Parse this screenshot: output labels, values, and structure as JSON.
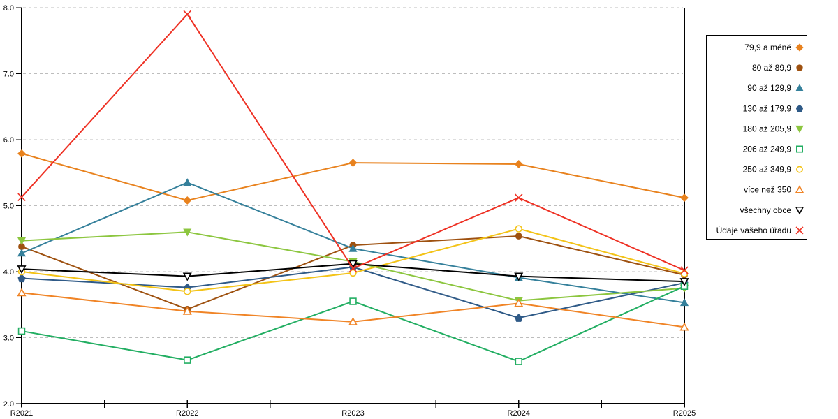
{
  "chart_data": {
    "type": "line",
    "title": "",
    "xlabel": "",
    "ylabel": "",
    "categories": [
      "R2021",
      "R2022",
      "R2023",
      "R2024",
      "R2025"
    ],
    "ylim": [
      2.0,
      8.0
    ],
    "ytick_step": 1.0,
    "ytick_labels": [
      "2.0",
      "3.0",
      "4.0",
      "5.0",
      "6.0",
      "7.0",
      "8.0"
    ],
    "grid": "horizontal-dashed",
    "grid_color": "#bdbdbd",
    "axis_color": "#000000",
    "x_minor_ticks": true,
    "legend_position": "right",
    "legend_border_color": "#000000",
    "series": [
      {
        "name": "79,9 a méně",
        "marker": "diamond",
        "fill": "filled",
        "color": "#e8821e",
        "values": [
          5.79,
          5.08,
          5.65,
          5.63,
          5.12
        ]
      },
      {
        "name": "80 až 89,9",
        "marker": "circle",
        "fill": "filled",
        "color": "#9e5110",
        "values": [
          4.38,
          3.43,
          4.4,
          4.54,
          3.95
        ]
      },
      {
        "name": "90 až 129,9",
        "marker": "triangle-up",
        "fill": "filled",
        "color": "#35809b",
        "values": [
          4.28,
          5.35,
          4.35,
          3.91,
          3.53
        ]
      },
      {
        "name": "130 až 179,9",
        "marker": "pentagon",
        "fill": "filled",
        "color": "#2f5a87",
        "values": [
          3.9,
          3.76,
          4.07,
          3.3,
          3.83
        ]
      },
      {
        "name": "180 až 205,9",
        "marker": "triangle-down",
        "fill": "filled",
        "color": "#8cc63f",
        "values": [
          4.47,
          4.6,
          4.15,
          3.56,
          3.75
        ]
      },
      {
        "name": "206 až 249,9",
        "marker": "square",
        "fill": "hollow",
        "color": "#22ae62",
        "values": [
          3.1,
          2.66,
          3.55,
          2.64,
          3.78
        ]
      },
      {
        "name": "250 až 349,9",
        "marker": "circle",
        "fill": "hollow",
        "color": "#f3c317",
        "values": [
          4.0,
          3.7,
          3.98,
          4.65,
          3.97
        ]
      },
      {
        "name": "více než 350",
        "marker": "triangle-up",
        "fill": "hollow",
        "color": "#f08426",
        "values": [
          3.68,
          3.4,
          3.24,
          3.52,
          3.16
        ]
      },
      {
        "name": "všechny obce",
        "marker": "triangle-down",
        "fill": "hollow",
        "color": "#000000",
        "values": [
          4.04,
          3.93,
          4.12,
          3.93,
          3.85
        ]
      },
      {
        "name": "Údaje vašeho úřadu",
        "marker": "x",
        "fill": "line",
        "color": "#ee3124",
        "values": [
          5.13,
          7.9,
          4.05,
          5.12,
          4.02
        ]
      }
    ]
  }
}
